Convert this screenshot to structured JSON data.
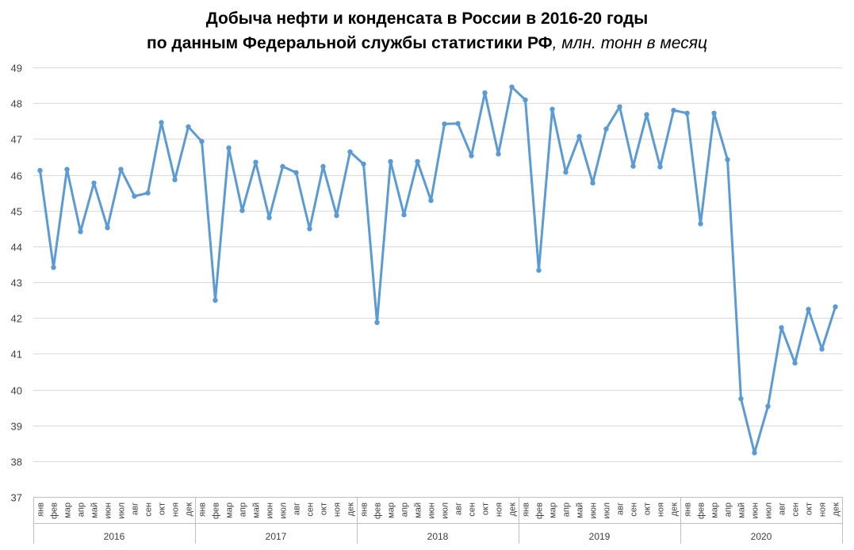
{
  "chart_data": {
    "type": "line",
    "title_line1": "Добыча нефти и конденсата в России в 2016-20 годы",
    "title_line2_bold": "по данным Федеральной службы статистики РФ",
    "title_line2_italic": ", млн. тонн в месяц",
    "xlabel": "",
    "ylabel": "",
    "ylim": [
      37,
      49
    ],
    "y_ticks": [
      37,
      38,
      39,
      40,
      41,
      42,
      43,
      44,
      45,
      46,
      47,
      48,
      49
    ],
    "grid": true,
    "legend": "none",
    "month_labels": [
      "янв",
      "фев",
      "мар",
      "апр",
      "май",
      "июн",
      "июл",
      "авг",
      "сен",
      "окт",
      "ноя",
      "дек"
    ],
    "years": [
      "2016",
      "2017",
      "2018",
      "2019",
      "2020"
    ],
    "line_color": "#5b9bd5",
    "gridline_color": "#d9d9d9",
    "values": [
      46.12,
      43.41,
      46.15,
      44.41,
      45.77,
      44.52,
      46.15,
      45.4,
      45.49,
      47.46,
      45.86,
      47.34,
      46.93,
      42.49,
      46.75,
      45.0,
      46.35,
      44.8,
      46.23,
      46.06,
      44.49,
      46.23,
      44.86,
      46.64,
      46.3,
      41.87,
      46.37,
      44.88,
      46.37,
      45.28,
      47.42,
      47.43,
      46.53,
      48.29,
      46.58,
      48.45,
      48.09,
      43.33,
      47.83,
      46.07,
      47.07,
      45.77,
      47.28,
      47.9,
      46.24,
      47.68,
      46.22,
      47.8,
      47.72,
      44.63,
      47.72,
      46.42,
      39.74,
      38.23,
      39.53,
      41.73,
      40.74,
      42.24,
      41.13,
      42.31
    ]
  }
}
